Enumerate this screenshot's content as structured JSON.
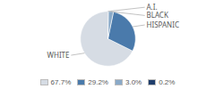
{
  "chart_data": {
    "type": "pie",
    "categories": [
      "WHITE",
      "HISPANIC",
      "BLACK",
      "A.I."
    ],
    "values": [
      67.7,
      29.2,
      3.0,
      0.2
    ],
    "value_labels": [
      "67.7%",
      "29.2%",
      "3.0%",
      "0.2%"
    ],
    "colors": [
      "#d6dce4",
      "#4a7aab",
      "#8aaac8",
      "#1f3d6b"
    ],
    "legend": "bottom"
  }
}
